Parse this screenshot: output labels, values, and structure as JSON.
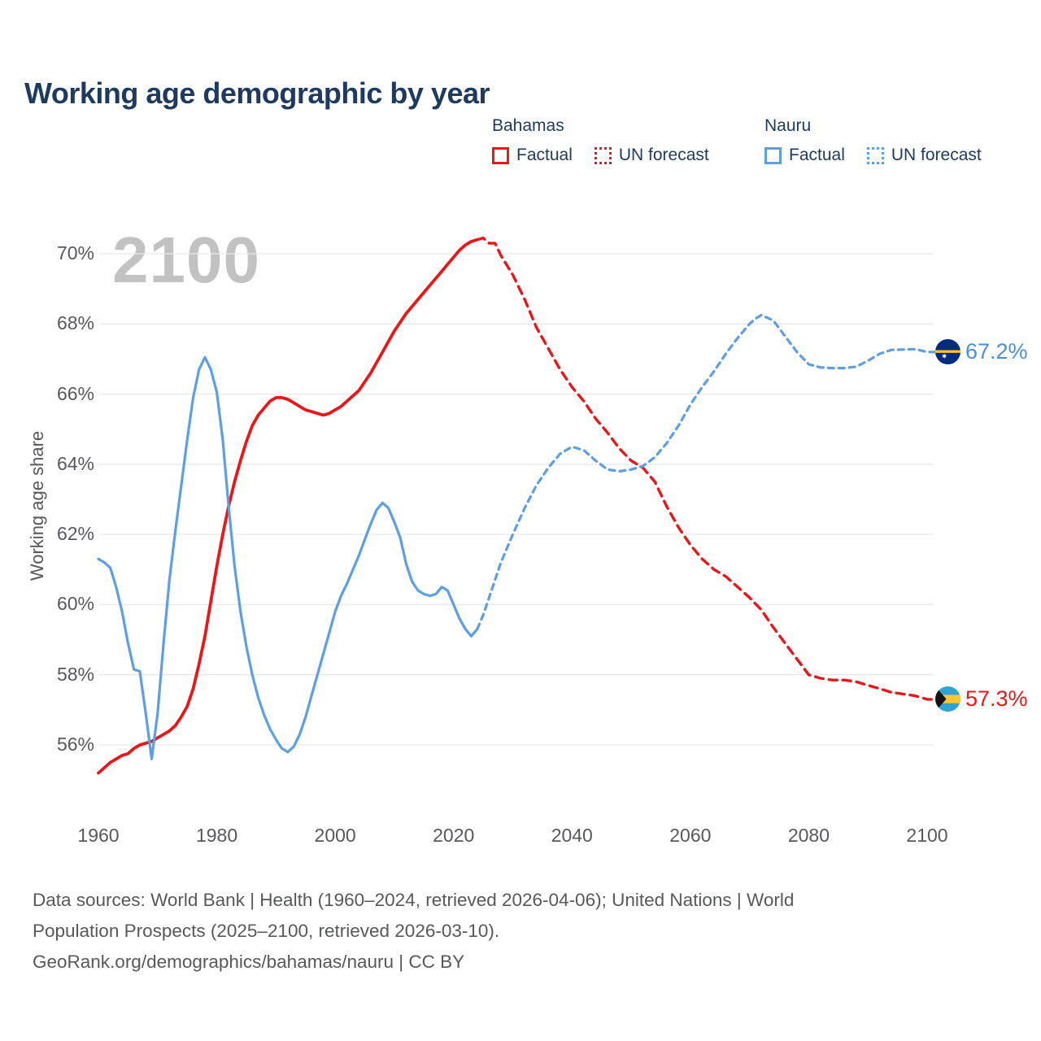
{
  "title": "Working age demographic by year",
  "watermark": "2100",
  "legend": {
    "groups": [
      {
        "label": "Bahamas",
        "color": "#e8171a",
        "items": [
          {
            "label": "Factual",
            "style": "solid"
          },
          {
            "label": "UN forecast",
            "style": "dotted"
          }
        ]
      },
      {
        "label": "Nauru",
        "color": "#5d9fe3",
        "items": [
          {
            "label": "Factual",
            "style": "solid"
          },
          {
            "label": "UN forecast",
            "style": "dotted"
          }
        ]
      }
    ]
  },
  "y_axis": {
    "title": "Working age share",
    "ticks": [
      "70%",
      "68%",
      "66%",
      "64%",
      "62%",
      "60%",
      "58%",
      "56%"
    ]
  },
  "x_axis": {
    "ticks": [
      "1960",
      "1980",
      "2000",
      "2020",
      "2040",
      "2060",
      "2080",
      "2100"
    ]
  },
  "end_labels": {
    "nauru": {
      "value": "67.2%",
      "color": "#4a90d9",
      "flag": "nauru-flag"
    },
    "bahamas": {
      "value": "57.3%",
      "color": "#e8171a",
      "flag": "bahamas-flag"
    }
  },
  "footer": {
    "lines": [
      "Data sources: World Bank | Health (1960–2024, retrieved 2026-04-06); United Nations | World",
      "Population Prospects (2025–2100, retrieved 2026-03-10).",
      "GeoRank.org/demographics/bahamas/nauru | CC BY"
    ]
  },
  "chart_data": {
    "type": "line",
    "title": "Working age demographic by year",
    "xlabel": "",
    "ylabel": "Working age share",
    "xlim": [
      1960,
      2100
    ],
    "ylim": [
      55,
      71
    ],
    "xticks": [
      1960,
      1980,
      2000,
      2020,
      2040,
      2060,
      2080,
      2100
    ],
    "yticks": [
      70,
      68,
      66,
      64,
      62,
      60,
      58,
      56
    ],
    "grid": "horizontal",
    "legend_position": "top-right",
    "series": [
      {
        "name": "Bahamas Factual",
        "color": "#e8171a",
        "line": "solid",
        "points": [
          [
            1960,
            55.2
          ],
          [
            1961,
            55.35
          ],
          [
            1962,
            55.5
          ],
          [
            1963,
            55.6
          ],
          [
            1964,
            55.7
          ],
          [
            1965,
            55.75
          ],
          [
            1966,
            55.9
          ],
          [
            1967,
            56.0
          ],
          [
            1968,
            56.05
          ],
          [
            1969,
            56.1
          ],
          [
            1970,
            56.2
          ],
          [
            1971,
            56.3
          ],
          [
            1972,
            56.4
          ],
          [
            1973,
            56.55
          ],
          [
            1974,
            56.8
          ],
          [
            1975,
            57.1
          ],
          [
            1976,
            57.6
          ],
          [
            1977,
            58.3
          ],
          [
            1978,
            59.1
          ],
          [
            1979,
            60.1
          ],
          [
            1980,
            61.1
          ],
          [
            1981,
            62.0
          ],
          [
            1982,
            62.8
          ],
          [
            1983,
            63.5
          ],
          [
            1984,
            64.1
          ],
          [
            1985,
            64.65
          ],
          [
            1986,
            65.1
          ],
          [
            1987,
            65.4
          ],
          [
            1988,
            65.6
          ],
          [
            1989,
            65.8
          ],
          [
            1990,
            65.9
          ],
          [
            1991,
            65.9
          ],
          [
            1992,
            65.85
          ],
          [
            1993,
            65.75
          ],
          [
            1994,
            65.65
          ],
          [
            1995,
            65.55
          ],
          [
            1996,
            65.5
          ],
          [
            1997,
            65.45
          ],
          [
            1998,
            65.4
          ],
          [
            1999,
            65.45
          ],
          [
            2000,
            65.55
          ],
          [
            2001,
            65.65
          ],
          [
            2002,
            65.8
          ],
          [
            2003,
            65.95
          ],
          [
            2004,
            66.1
          ],
          [
            2005,
            66.35
          ],
          [
            2006,
            66.6
          ],
          [
            2007,
            66.9
          ],
          [
            2008,
            67.2
          ],
          [
            2009,
            67.5
          ],
          [
            2010,
            67.8
          ],
          [
            2011,
            68.05
          ],
          [
            2012,
            68.3
          ],
          [
            2013,
            68.5
          ],
          [
            2014,
            68.7
          ],
          [
            2015,
            68.9
          ],
          [
            2016,
            69.1
          ],
          [
            2017,
            69.3
          ],
          [
            2018,
            69.5
          ],
          [
            2019,
            69.7
          ],
          [
            2020,
            69.9
          ],
          [
            2021,
            70.1
          ],
          [
            2022,
            70.25
          ],
          [
            2023,
            70.35
          ],
          [
            2024,
            70.4
          ]
        ]
      },
      {
        "name": "Bahamas UN forecast",
        "color": "#e8171a",
        "line": "dashed",
        "points": [
          [
            2024,
            70.4
          ],
          [
            2025,
            70.45
          ],
          [
            2026,
            70.3
          ],
          [
            2027,
            70.3
          ],
          [
            2028,
            69.95
          ],
          [
            2030,
            69.4
          ],
          [
            2032,
            68.7
          ],
          [
            2034,
            67.9
          ],
          [
            2036,
            67.3
          ],
          [
            2038,
            66.7
          ],
          [
            2040,
            66.2
          ],
          [
            2042,
            65.8
          ],
          [
            2044,
            65.3
          ],
          [
            2046,
            64.9
          ],
          [
            2048,
            64.45
          ],
          [
            2050,
            64.1
          ],
          [
            2052,
            63.9
          ],
          [
            2054,
            63.5
          ],
          [
            2056,
            62.8
          ],
          [
            2058,
            62.2
          ],
          [
            2060,
            61.7
          ],
          [
            2062,
            61.3
          ],
          [
            2064,
            61.0
          ],
          [
            2066,
            60.8
          ],
          [
            2068,
            60.5
          ],
          [
            2070,
            60.2
          ],
          [
            2072,
            59.85
          ],
          [
            2074,
            59.35
          ],
          [
            2076,
            58.9
          ],
          [
            2078,
            58.45
          ],
          [
            2080,
            58.0
          ],
          [
            2082,
            57.9
          ],
          [
            2084,
            57.85
          ],
          [
            2086,
            57.85
          ],
          [
            2088,
            57.8
          ],
          [
            2090,
            57.7
          ],
          [
            2092,
            57.6
          ],
          [
            2094,
            57.5
          ],
          [
            2096,
            57.45
          ],
          [
            2098,
            57.4
          ],
          [
            2100,
            57.3
          ]
        ]
      },
      {
        "name": "Nauru Factual",
        "color": "#5d9fe3",
        "line": "solid",
        "points": [
          [
            1960,
            61.3
          ],
          [
            1961,
            61.2
          ],
          [
            1962,
            61.05
          ],
          [
            1963,
            60.5
          ],
          [
            1964,
            59.8
          ],
          [
            1965,
            58.9
          ],
          [
            1966,
            58.15
          ],
          [
            1967,
            58.1
          ],
          [
            1968,
            56.9
          ],
          [
            1969,
            55.6
          ],
          [
            1970,
            56.9
          ],
          [
            1971,
            58.9
          ],
          [
            1972,
            60.7
          ],
          [
            1973,
            62.1
          ],
          [
            1974,
            63.4
          ],
          [
            1975,
            64.7
          ],
          [
            1976,
            65.9
          ],
          [
            1977,
            66.7
          ],
          [
            1978,
            67.05
          ],
          [
            1979,
            66.7
          ],
          [
            1980,
            66.05
          ],
          [
            1981,
            64.7
          ],
          [
            1982,
            62.8
          ],
          [
            1983,
            61.1
          ],
          [
            1984,
            59.8
          ],
          [
            1985,
            58.8
          ],
          [
            1986,
            58.0
          ],
          [
            1987,
            57.35
          ],
          [
            1988,
            56.85
          ],
          [
            1989,
            56.45
          ],
          [
            1990,
            56.15
          ],
          [
            1991,
            55.9
          ],
          [
            1992,
            55.8
          ],
          [
            1993,
            55.95
          ],
          [
            1994,
            56.3
          ],
          [
            1995,
            56.8
          ],
          [
            1996,
            57.4
          ],
          [
            1997,
            58.0
          ],
          [
            1998,
            58.6
          ],
          [
            1999,
            59.2
          ],
          [
            2000,
            59.8
          ],
          [
            2001,
            60.25
          ],
          [
            2002,
            60.6
          ],
          [
            2003,
            61.0
          ],
          [
            2004,
            61.4
          ],
          [
            2005,
            61.85
          ],
          [
            2006,
            62.3
          ],
          [
            2007,
            62.7
          ],
          [
            2008,
            62.9
          ],
          [
            2009,
            62.75
          ],
          [
            2010,
            62.35
          ],
          [
            2011,
            61.9
          ],
          [
            2012,
            61.15
          ],
          [
            2013,
            60.65
          ],
          [
            2014,
            60.4
          ],
          [
            2015,
            60.3
          ],
          [
            2016,
            60.25
          ],
          [
            2017,
            60.3
          ],
          [
            2018,
            60.5
          ],
          [
            2019,
            60.4
          ],
          [
            2020,
            60.0
          ],
          [
            2021,
            59.6
          ],
          [
            2022,
            59.3
          ],
          [
            2023,
            59.1
          ],
          [
            2024,
            59.3
          ]
        ]
      },
      {
        "name": "Nauru UN forecast",
        "color": "#5d9fe3",
        "line": "dashed",
        "points": [
          [
            2024,
            59.3
          ],
          [
            2025,
            59.7
          ],
          [
            2026,
            60.2
          ],
          [
            2028,
            61.2
          ],
          [
            2030,
            62.0
          ],
          [
            2032,
            62.75
          ],
          [
            2034,
            63.4
          ],
          [
            2036,
            63.9
          ],
          [
            2038,
            64.3
          ],
          [
            2040,
            64.5
          ],
          [
            2042,
            64.4
          ],
          [
            2044,
            64.1
          ],
          [
            2046,
            63.85
          ],
          [
            2048,
            63.8
          ],
          [
            2050,
            63.85
          ],
          [
            2052,
            63.95
          ],
          [
            2054,
            64.2
          ],
          [
            2056,
            64.6
          ],
          [
            2058,
            65.1
          ],
          [
            2060,
            65.7
          ],
          [
            2062,
            66.2
          ],
          [
            2064,
            66.65
          ],
          [
            2066,
            67.15
          ],
          [
            2068,
            67.6
          ],
          [
            2070,
            68.0
          ],
          [
            2071,
            68.15
          ],
          [
            2072,
            68.25
          ],
          [
            2074,
            68.1
          ],
          [
            2076,
            67.65
          ],
          [
            2078,
            67.2
          ],
          [
            2080,
            66.85
          ],
          [
            2082,
            66.76
          ],
          [
            2084,
            66.74
          ],
          [
            2086,
            66.74
          ],
          [
            2088,
            66.78
          ],
          [
            2090,
            66.95
          ],
          [
            2092,
            67.15
          ],
          [
            2094,
            67.26
          ],
          [
            2096,
            67.27
          ],
          [
            2098,
            67.28
          ],
          [
            2100,
            67.2
          ]
        ]
      }
    ]
  }
}
